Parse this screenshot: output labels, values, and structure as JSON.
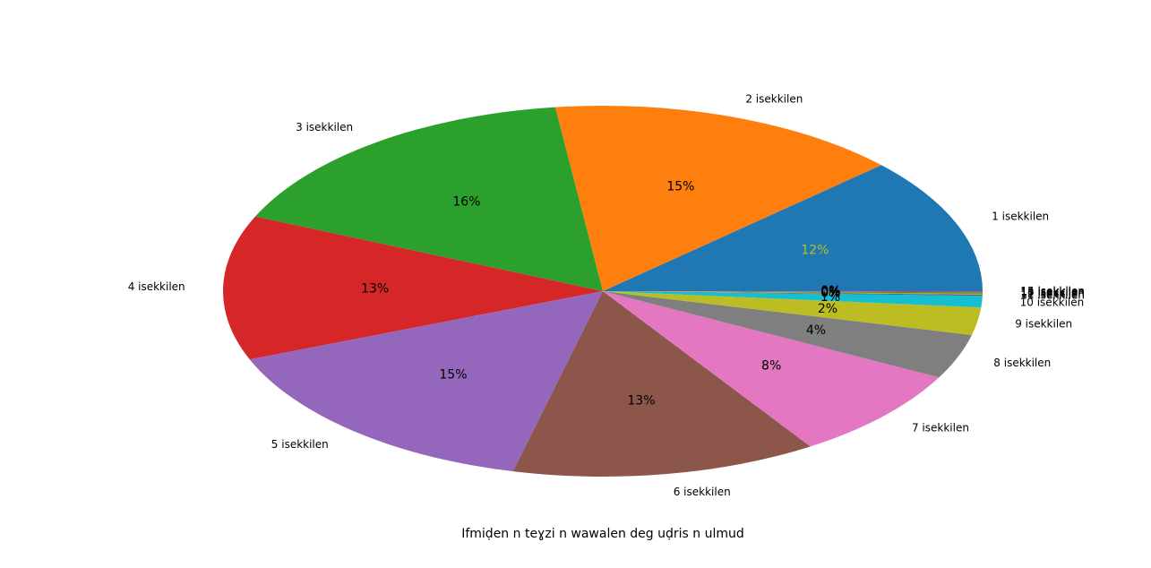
{
  "chart_data": {
    "type": "pie",
    "xlabel": "Ifmiḍen n teɣzi n wawalen deg uḍris n ulmud",
    "categories": [
      "1 isekkilen",
      "2 isekkilen",
      "3 isekkilen",
      "4 isekkilen",
      "5 isekkilen",
      "6 isekkilen",
      "7 isekkilen",
      "8 isekkilen",
      "9 isekkilen",
      "10 isekkilen",
      "11 isekkilen",
      "12 isekkilen",
      "13 isekkilen",
      "14 isekkilen",
      "15 isekkilen"
    ],
    "values": [
      11.9,
      15.1,
      16.4,
      12.6,
      15.2,
      13.0,
      8.1,
      3.9,
      2.4,
      1.0,
      0.1,
      0.1,
      0.1,
      0.05,
      0.05
    ],
    "value_labels": [
      "12%",
      "15%",
      "16%",
      "13%",
      "15%",
      "13%",
      "8%",
      "4%",
      "2%",
      "1%",
      "0%",
      "0%",
      "0%",
      "0%",
      "0%"
    ],
    "colors": [
      "#1f77b4",
      "#ff7f0e",
      "#2ca02c",
      "#d62728",
      "#9467bd",
      "#8c564b",
      "#e377c2",
      "#7f7f7f",
      "#bcbd22",
      "#17becf",
      "#1f77b4",
      "#ff7f0e",
      "#2ca02c",
      "#d62728",
      "#9467bd"
    ],
    "startangle": 0
  }
}
